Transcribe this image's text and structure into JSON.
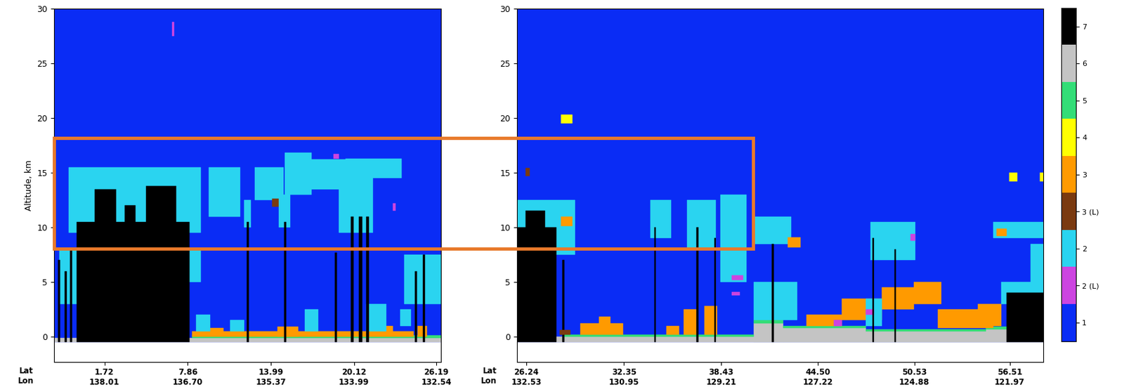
{
  "chart_data": [
    {
      "type": "heatmap",
      "ylabel": "Altitude, km",
      "axis_row_titles": [
        "Lat",
        "Lon"
      ],
      "xlim": [
        -2.0,
        26.5
      ],
      "xticks": [
        {
          "value": 1.72,
          "label": "1.72\n138.01"
        },
        {
          "value": 7.86,
          "label": "7.86\n136.70"
        },
        {
          "value": 13.99,
          "label": "13.99\n135.37"
        },
        {
          "value": 20.12,
          "label": "20.12\n133.99"
        },
        {
          "value": 26.19,
          "label": "26.19\n132.54"
        }
      ],
      "ylim": [
        -2.3,
        30
      ],
      "yticks": [
        0,
        5,
        10,
        15,
        20,
        25,
        30
      ],
      "features": [
        {
          "class": "1",
          "x": [
            -2.0,
            26.5
          ],
          "alt": [
            -0.5,
            30
          ]
        },
        {
          "class": "6",
          "x": [
            -2.0,
            26.5
          ],
          "alt": [
            -0.5,
            -0.1
          ]
        },
        {
          "class": "5",
          "x": [
            8.2,
            26.5
          ],
          "alt": [
            -0.15,
            0.1
          ]
        },
        {
          "class": "3",
          "x": [
            8.2,
            24.5
          ],
          "alt": [
            0.0,
            0.5
          ]
        },
        {
          "class": "3",
          "x": [
            9.5,
            10.5
          ],
          "alt": [
            0.1,
            0.8
          ]
        },
        {
          "class": "3",
          "x": [
            14.5,
            16.0
          ],
          "alt": [
            0.0,
            0.9
          ]
        },
        {
          "class": "3",
          "x": [
            22.0,
            23.0
          ],
          "alt": [
            0.1,
            1.0
          ]
        },
        {
          "class": "3",
          "x": [
            24.8,
            25.5
          ],
          "alt": [
            0.0,
            1.0
          ]
        },
        {
          "class": "2",
          "x": [
            8.5,
            9.5
          ],
          "alt": [
            0.5,
            2.0
          ]
        },
        {
          "class": "2",
          "x": [
            11.0,
            12.0
          ],
          "alt": [
            0.5,
            1.5
          ]
        },
        {
          "class": "2",
          "x": [
            16.5,
            17.5
          ],
          "alt": [
            0.5,
            2.5
          ]
        },
        {
          "class": "2",
          "x": [
            21.0,
            22.5
          ],
          "alt": [
            0.5,
            3.0
          ]
        },
        {
          "class": "2",
          "x": [
            23.5,
            24.3
          ],
          "alt": [
            1.0,
            2.5
          ]
        },
        {
          "class": "2",
          "x": [
            -0.9,
            8.8
          ],
          "alt": [
            9.5,
            15.5
          ]
        },
        {
          "class": "2",
          "x": [
            -1.6,
            0.2
          ],
          "alt": [
            3.0,
            8.0
          ]
        },
        {
          "class": "2",
          "x": [
            8.0,
            8.8
          ],
          "alt": [
            5.0,
            8.0
          ]
        },
        {
          "class": "7",
          "x": [
            -0.3,
            8.0
          ],
          "alt": [
            -0.5,
            10.5
          ]
        },
        {
          "class": "7",
          "x": [
            1.0,
            2.6
          ],
          "alt": [
            10.5,
            13.5
          ]
        },
        {
          "class": "7",
          "x": [
            3.2,
            4.0
          ],
          "alt": [
            10.5,
            12.0
          ]
        },
        {
          "class": "7",
          "x": [
            4.8,
            7.0
          ],
          "alt": [
            10.5,
            13.8
          ]
        },
        {
          "class": "7",
          "x": [
            -1.7,
            -1.55
          ],
          "alt": [
            -0.5,
            7.0
          ]
        },
        {
          "class": "7",
          "x": [
            -1.2,
            -1.05
          ],
          "alt": [
            -0.5,
            6.0
          ]
        },
        {
          "class": "7",
          "x": [
            -0.8,
            -0.65
          ],
          "alt": [
            -0.5,
            8.0
          ]
        },
        {
          "class": "2 (L)",
          "x": [
            6.7,
            6.85
          ],
          "alt": [
            27.5,
            28.8
          ]
        },
        {
          "class": "2",
          "x": [
            9.4,
            11.7
          ],
          "alt": [
            11.0,
            15.5
          ]
        },
        {
          "class": "2",
          "x": [
            12.0,
            12.5
          ],
          "alt": [
            10.0,
            12.5
          ]
        },
        {
          "class": "7",
          "x": [
            12.2,
            12.35
          ],
          "alt": [
            -0.5,
            10.5
          ]
        },
        {
          "class": "2",
          "x": [
            12.8,
            14.9
          ],
          "alt": [
            12.5,
            15.5
          ]
        },
        {
          "class": "3 (L)",
          "x": [
            14.1,
            14.7
          ],
          "alt": [
            11.9,
            12.6
          ]
        },
        {
          "class": "2",
          "x": [
            14.6,
            15.4
          ],
          "alt": [
            10.0,
            13.0
          ]
        },
        {
          "class": "7",
          "x": [
            14.95,
            15.1
          ],
          "alt": [
            -0.5,
            10.5
          ]
        },
        {
          "class": "2",
          "x": [
            15.0,
            17.0
          ],
          "alt": [
            13.0,
            16.8
          ]
        },
        {
          "class": "2",
          "x": [
            17.0,
            19.5
          ],
          "alt": [
            13.5,
            16.2
          ]
        },
        {
          "class": "2",
          "x": [
            19.5,
            23.6
          ],
          "alt": [
            14.5,
            16.3
          ]
        },
        {
          "class": "2",
          "x": [
            19.0,
            21.5
          ],
          "alt": [
            9.5,
            14.5
          ]
        },
        {
          "class": "2 (L)",
          "x": [
            18.6,
            19.0
          ],
          "alt": [
            16.3,
            16.7
          ]
        },
        {
          "class": "2 (L)",
          "x": [
            23.0,
            23.2
          ],
          "alt": [
            11.5,
            12.2
          ]
        },
        {
          "class": "7",
          "x": [
            18.7,
            18.85
          ],
          "alt": [
            -0.5,
            7.7
          ]
        },
        {
          "class": "7",
          "x": [
            19.9,
            20.1
          ],
          "alt": [
            -0.5,
            11.0
          ]
        },
        {
          "class": "7",
          "x": [
            20.5,
            20.7
          ],
          "alt": [
            -0.5,
            11.0
          ]
        },
        {
          "class": "7",
          "x": [
            21.0,
            21.2
          ],
          "alt": [
            -0.5,
            11.0
          ]
        },
        {
          "class": "2",
          "x": [
            23.8,
            26.5
          ],
          "alt": [
            3.0,
            7.5
          ]
        },
        {
          "class": "7",
          "x": [
            24.6,
            24.75
          ],
          "alt": [
            -0.5,
            6.0
          ]
        },
        {
          "class": "7",
          "x": [
            25.2,
            25.35
          ],
          "alt": [
            -0.5,
            7.5
          ]
        }
      ]
    },
    {
      "type": "heatmap",
      "axis_row_titles": [
        "Lat",
        "Lon"
      ],
      "xlim": [
        25.65,
        58.6
      ],
      "xticks": [
        {
          "value": 26.24,
          "label": "26.24\n132.53"
        },
        {
          "value": 32.35,
          "label": "32.35\n130.95"
        },
        {
          "value": 38.43,
          "label": "38.43\n129.21"
        },
        {
          "value": 44.5,
          "label": "44.50\n127.22"
        },
        {
          "value": 50.53,
          "label": "50.53\n124.88"
        },
        {
          "value": 56.51,
          "label": "56.51\n121.97"
        }
      ],
      "ylim": [
        -2.3,
        30
      ],
      "yticks": [
        0,
        5,
        10,
        15,
        20,
        25,
        30
      ],
      "features": [
        {
          "class": "1",
          "x": [
            25.65,
            58.6
          ],
          "alt": [
            -0.5,
            30
          ]
        },
        {
          "class": "6",
          "x": [
            25.65,
            58.6
          ],
          "alt": [
            -0.5,
            0.0
          ]
        },
        {
          "class": "6",
          "x": [
            40.5,
            42.3
          ],
          "alt": [
            -0.5,
            1.2
          ]
        },
        {
          "class": "6",
          "x": [
            42.3,
            47.5
          ],
          "alt": [
            -0.5,
            0.8
          ]
        },
        {
          "class": "6",
          "x": [
            47.5,
            55.0
          ],
          "alt": [
            -0.5,
            0.5
          ]
        },
        {
          "class": "6",
          "x": [
            55.0,
            58.6
          ],
          "alt": [
            -0.5,
            0.7
          ]
        },
        {
          "class": "5",
          "x": [
            28.5,
            40.5
          ],
          "alt": [
            0.0,
            0.2
          ]
        },
        {
          "class": "5",
          "x": [
            40.5,
            42.3
          ],
          "alt": [
            1.2,
            1.5
          ]
        },
        {
          "class": "5",
          "x": [
            42.3,
            47.5
          ],
          "alt": [
            0.8,
            1.0
          ]
        },
        {
          "class": "5",
          "x": [
            47.5,
            55.0
          ],
          "alt": [
            0.5,
            0.7
          ]
        },
        {
          "class": "5",
          "x": [
            55.0,
            58.6
          ],
          "alt": [
            0.7,
            0.9
          ]
        },
        {
          "class": "2",
          "x": [
            25.65,
            29.3
          ],
          "alt": [
            7.5,
            12.5
          ]
        },
        {
          "class": "7",
          "x": [
            25.65,
            28.1
          ],
          "alt": [
            -0.5,
            10.0
          ]
        },
        {
          "class": "7",
          "x": [
            26.2,
            27.4
          ],
          "alt": [
            10.0,
            11.5
          ]
        },
        {
          "class": "7",
          "x": [
            28.5,
            28.6
          ],
          "alt": [
            -0.5,
            7.0
          ]
        },
        {
          "class": "3 (L)",
          "x": [
            26.2,
            26.45
          ],
          "alt": [
            14.7,
            15.4
          ]
        },
        {
          "class": "3 (L)",
          "x": [
            28.3,
            29.0
          ],
          "alt": [
            0.2,
            0.6
          ]
        },
        {
          "class": "4",
          "x": [
            28.4,
            29.1
          ],
          "alt": [
            19.5,
            20.3
          ]
        },
        {
          "class": "3",
          "x": [
            28.4,
            29.1
          ],
          "alt": [
            10.1,
            11.0
          ]
        },
        {
          "class": "3",
          "x": [
            29.6,
            32.3
          ],
          "alt": [
            0.2,
            1.2
          ]
        },
        {
          "class": "3",
          "x": [
            30.8,
            31.5
          ],
          "alt": [
            1.2,
            1.8
          ]
        },
        {
          "class": "3",
          "x": [
            35.0,
            35.8
          ],
          "alt": [
            0.2,
            1.0
          ]
        },
        {
          "class": "3",
          "x": [
            36.1,
            36.9
          ],
          "alt": [
            0.2,
            2.5
          ]
        },
        {
          "class": "3",
          "x": [
            37.4,
            38.2
          ],
          "alt": [
            0.2,
            2.8
          ]
        },
        {
          "class": "2",
          "x": [
            34.0,
            35.3
          ],
          "alt": [
            9.0,
            12.5
          ]
        },
        {
          "class": "7",
          "x": [
            34.25,
            34.35
          ],
          "alt": [
            -0.5,
            10.0
          ]
        },
        {
          "class": "2",
          "x": [
            36.3,
            38.1
          ],
          "alt": [
            8.0,
            12.5
          ]
        },
        {
          "class": "7",
          "x": [
            36.9,
            37.0
          ],
          "alt": [
            -0.5,
            10.0
          ]
        },
        {
          "class": "7",
          "x": [
            38.0,
            38.1
          ],
          "alt": [
            -0.5,
            9.0
          ]
        },
        {
          "class": "2",
          "x": [
            38.4,
            40.0
          ],
          "alt": [
            5.0,
            13.0
          ]
        },
        {
          "class": "2 (L)",
          "x": [
            39.1,
            39.8
          ],
          "alt": [
            5.2,
            5.6
          ]
        },
        {
          "class": "2 (L)",
          "x": [
            39.1,
            39.6
          ],
          "alt": [
            3.8,
            4.1
          ]
        },
        {
          "class": "2",
          "x": [
            40.5,
            42.8
          ],
          "alt": [
            8.5,
            11.0
          ]
        },
        {
          "class": "2",
          "x": [
            40.5,
            43.2
          ],
          "alt": [
            1.5,
            5.0
          ]
        },
        {
          "class": "7",
          "x": [
            41.6,
            41.75
          ],
          "alt": [
            -0.5,
            8.5
          ]
        },
        {
          "class": "3",
          "x": [
            42.6,
            43.4
          ],
          "alt": [
            8.2,
            9.1
          ]
        },
        {
          "class": "3",
          "x": [
            43.8,
            46.0
          ],
          "alt": [
            1.0,
            2.0
          ]
        },
        {
          "class": "3",
          "x": [
            46.0,
            48.5
          ],
          "alt": [
            1.5,
            3.5
          ]
        },
        {
          "class": "3",
          "x": [
            48.5,
            50.5
          ],
          "alt": [
            2.5,
            4.5
          ]
        },
        {
          "class": "3",
          "x": [
            50.5,
            52.2
          ],
          "alt": [
            3.0,
            5.0
          ]
        },
        {
          "class": "3",
          "x": [
            52.0,
            55.5
          ],
          "alt": [
            0.8,
            2.5
          ]
        },
        {
          "class": "3",
          "x": [
            54.5,
            56.0
          ],
          "alt": [
            1.0,
            3.0
          ]
        },
        {
          "class": "2 (L)",
          "x": [
            45.5,
            46.0
          ],
          "alt": [
            1.0,
            1.5
          ]
        },
        {
          "class": "2",
          "x": [
            47.5,
            48.5
          ],
          "alt": [
            1.0,
            3.5
          ]
        },
        {
          "class": "2 (L)",
          "x": [
            47.5,
            48.0
          ],
          "alt": [
            2.0,
            2.5
          ]
        },
        {
          "class": "2",
          "x": [
            47.8,
            50.6
          ],
          "alt": [
            7.0,
            10.5
          ]
        },
        {
          "class": "7",
          "x": [
            47.9,
            48.0
          ],
          "alt": [
            -0.5,
            9.0
          ]
        },
        {
          "class": "7",
          "x": [
            49.3,
            49.4
          ],
          "alt": [
            -0.5,
            8.0
          ]
        },
        {
          "class": "2 (L)",
          "x": [
            50.3,
            50.6
          ],
          "alt": [
            8.8,
            9.4
          ]
        },
        {
          "class": "2",
          "x": [
            55.5,
            58.6
          ],
          "alt": [
            9.0,
            10.5
          ]
        },
        {
          "class": "3",
          "x": [
            55.7,
            56.3
          ],
          "alt": [
            9.2,
            9.9
          ]
        },
        {
          "class": "2",
          "x": [
            57.8,
            58.6
          ],
          "alt": [
            5.0,
            8.5
          ]
        },
        {
          "class": "2",
          "x": [
            56.0,
            58.6
          ],
          "alt": [
            3.0,
            5.0
          ]
        },
        {
          "class": "7",
          "x": [
            56.3,
            58.6
          ],
          "alt": [
            -0.5,
            4.0
          ]
        },
        {
          "class": "4",
          "x": [
            56.5,
            57.0
          ],
          "alt": [
            14.2,
            15.0
          ]
        },
        {
          "class": "4",
          "x": [
            58.4,
            58.6
          ],
          "alt": [
            14.2,
            15.0
          ]
        }
      ]
    }
  ],
  "color_scale": {
    "classes": [
      {
        "label": "7",
        "color": "#000000"
      },
      {
        "label": "6",
        "color": "#c4c4c4"
      },
      {
        "label": "5",
        "color": "#33dd77"
      },
      {
        "label": "4",
        "color": "#ffff00"
      },
      {
        "label": "3",
        "color": "#ff9a00"
      },
      {
        "label": "3 (L)",
        "color": "#7a3a10"
      },
      {
        "label": "2",
        "color": "#2ad4f0"
      },
      {
        "label": "2 (L)",
        "color": "#cc44e0"
      },
      {
        "label": "1",
        "color": "#0a2cf5"
      }
    ]
  }
}
